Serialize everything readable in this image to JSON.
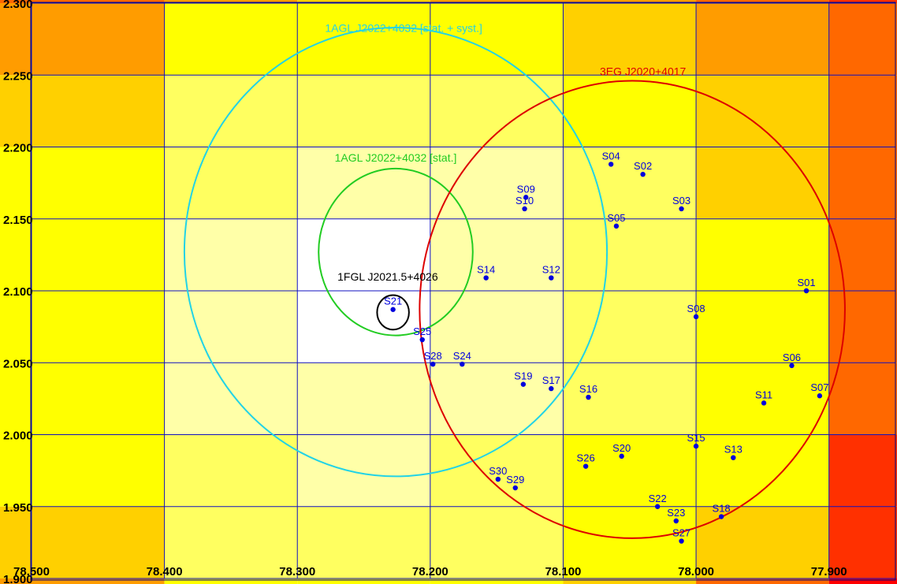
{
  "chart_data": {
    "type": "scatter",
    "title": "",
    "xlabel": "",
    "ylabel": "",
    "xlim": [
      78.5,
      77.85
    ],
    "ylim": [
      1.9,
      2.3
    ],
    "x_ticks": [
      "78.500",
      "78.400",
      "78.300",
      "78.200",
      "78.100",
      "78.000",
      "77.900"
    ],
    "x_tick_values": [
      78.5,
      78.4,
      78.3,
      78.2,
      78.1,
      78.0,
      77.9
    ],
    "y_ticks": [
      "1.900",
      "1.950",
      "2.000",
      "2.050",
      "2.100",
      "2.150",
      "2.200",
      "2.250",
      "2.300"
    ],
    "y_tick_values": [
      1.9,
      1.95,
      2.0,
      2.05,
      2.1,
      2.15,
      2.2,
      2.25,
      2.3
    ],
    "grid": true,
    "background_map": {
      "colormap": [
        "#ffffff",
        "#ffffa8",
        "#ffff60",
        "#ffff00",
        "#ffd000",
        "#ff9c00",
        "#ff6800",
        "#ff3000",
        "#ff0000"
      ],
      "columns": [
        {
          "x": [
            78.5,
            78.4
          ],
          "levels": [
            6,
            5,
            4,
            3,
            3,
            3,
            3,
            3,
            4,
            5
          ]
        },
        {
          "x": [
            78.4,
            78.3
          ],
          "levels": [
            5,
            3,
            2,
            2,
            1,
            1,
            1,
            2,
            2,
            3
          ]
        },
        {
          "x": [
            78.3,
            78.2
          ],
          "levels": [
            4,
            3,
            2,
            1,
            0,
            0,
            1,
            1,
            2,
            3
          ]
        },
        {
          "x": [
            78.2,
            78.1
          ],
          "levels": [
            5,
            3,
            2,
            1,
            1,
            1,
            1,
            2,
            2,
            3
          ]
        },
        {
          "x": [
            78.1,
            78.0
          ],
          "levels": [
            5,
            4,
            3,
            2,
            2,
            2,
            2,
            3,
            3,
            4
          ]
        },
        {
          "x": [
            78.0,
            77.9
          ],
          "levels": [
            6,
            5,
            4,
            4,
            3,
            3,
            3,
            3,
            4,
            6
          ]
        },
        {
          "x": [
            77.9,
            77.85
          ],
          "levels": [
            7,
            6,
            6,
            6,
            6,
            6,
            6,
            7,
            7,
            8
          ]
        }
      ]
    },
    "circles": [
      {
        "label": "1AGL J2022+4032 [stat. + syst.]",
        "color": "#22d3e6",
        "center": [
          78.226,
          2.127
        ],
        "radius_x": 0.159,
        "radius_y": 0.156,
        "label_at": [
          78.22,
          2.28
        ]
      },
      {
        "label": "1AGL J2022+4032 [stat.]",
        "color": "#22cc22",
        "center": [
          78.226,
          2.127
        ],
        "radius_x": 0.058,
        "radius_y": 0.058,
        "label_at": [
          78.226,
          2.19
        ]
      },
      {
        "label": "3EG J2020+4017",
        "color": "#dd0000",
        "center": [
          78.048,
          2.087
        ],
        "radius_x": 0.16,
        "radius_y": 0.159,
        "label_at": [
          78.04,
          2.25
        ]
      },
      {
        "label": "1FGL J2021.5+4026",
        "color": "#000000",
        "center": [
          78.228,
          2.085
        ],
        "radius_x": 0.012,
        "radius_y": 0.012,
        "label_at": [
          78.232,
          2.107
        ]
      }
    ],
    "points_color": "#0000dd",
    "points": [
      {
        "name": "S01",
        "x": 77.917,
        "y": 2.1
      },
      {
        "name": "S02",
        "x": 78.04,
        "y": 2.181
      },
      {
        "name": "S03",
        "x": 78.011,
        "y": 2.157
      },
      {
        "name": "S04",
        "x": 78.064,
        "y": 2.188
      },
      {
        "name": "S05",
        "x": 78.06,
        "y": 2.145
      },
      {
        "name": "S06",
        "x": 77.928,
        "y": 2.048
      },
      {
        "name": "S07",
        "x": 77.907,
        "y": 2.027
      },
      {
        "name": "S08",
        "x": 78.0,
        "y": 2.082
      },
      {
        "name": "S09",
        "x": 78.128,
        "y": 2.165
      },
      {
        "name": "S10",
        "x": 78.129,
        "y": 2.157
      },
      {
        "name": "S11",
        "x": 77.949,
        "y": 2.022
      },
      {
        "name": "S12",
        "x": 78.109,
        "y": 2.109
      },
      {
        "name": "S13",
        "x": 77.972,
        "y": 1.984
      },
      {
        "name": "S14",
        "x": 78.158,
        "y": 2.109
      },
      {
        "name": "S15",
        "x": 78.0,
        "y": 1.992
      },
      {
        "name": "S16",
        "x": 78.081,
        "y": 2.026
      },
      {
        "name": "S17",
        "x": 78.109,
        "y": 2.032
      },
      {
        "name": "S18",
        "x": 77.981,
        "y": 1.943
      },
      {
        "name": "S19",
        "x": 78.13,
        "y": 2.035
      },
      {
        "name": "S20",
        "x": 78.056,
        "y": 1.985
      },
      {
        "name": "S21",
        "x": 78.228,
        "y": 2.087
      },
      {
        "name": "S22",
        "x": 78.029,
        "y": 1.95
      },
      {
        "name": "S23",
        "x": 78.015,
        "y": 1.94
      },
      {
        "name": "S24",
        "x": 78.176,
        "y": 2.049
      },
      {
        "name": "S25",
        "x": 78.206,
        "y": 2.066
      },
      {
        "name": "S26",
        "x": 78.083,
        "y": 1.978
      },
      {
        "name": "S27",
        "x": 78.011,
        "y": 1.926
      },
      {
        "name": "S28",
        "x": 78.198,
        "y": 2.049
      },
      {
        "name": "S29",
        "x": 78.136,
        "y": 1.963
      },
      {
        "name": "S30",
        "x": 78.149,
        "y": 1.969
      }
    ]
  }
}
